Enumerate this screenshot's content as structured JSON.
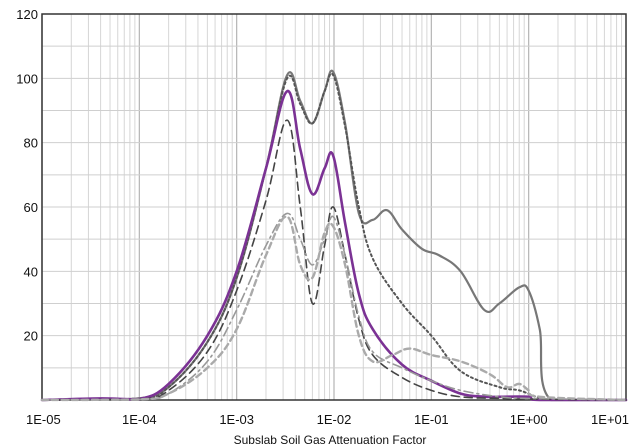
{
  "chart_data": {
    "type": "line",
    "title": "",
    "xlabel": "Subslab Soil Gas Attenuation Factor",
    "ylabel": "",
    "x_scale": "log",
    "xlim": [
      1e-05,
      10
    ],
    "ylim": [
      0,
      120
    ],
    "grid": true,
    "legend": "none",
    "x_ticks": [
      {
        "value": 1e-05,
        "label": "1E-05"
      },
      {
        "value": 0.0001,
        "label": "1E-04"
      },
      {
        "value": 0.001,
        "label": "1E-03"
      },
      {
        "value": 0.01,
        "label": "1E-02"
      },
      {
        "value": 0.1,
        "label": "1E-01"
      },
      {
        "value": 1,
        "label": "1E+00"
      },
      {
        "value": 10,
        "label": "1E+01"
      }
    ],
    "y_ticks": [
      {
        "value": 20,
        "label": "20"
      },
      {
        "value": 40,
        "label": "40"
      },
      {
        "value": 60,
        "label": "60"
      },
      {
        "value": 80,
        "label": "80"
      },
      {
        "value": 100,
        "label": "100"
      },
      {
        "value": 120,
        "label": "120"
      }
    ],
    "series": [
      {
        "color": "#777777",
        "style": "solid",
        "width": 2.2,
        "points": [
          [
            1e-05,
            0
          ],
          [
            3e-05,
            0.2
          ],
          [
            0.0001,
            0.5
          ],
          [
            0.0002,
            4
          ],
          [
            0.0005,
            18
          ],
          [
            0.001,
            38
          ],
          [
            0.002,
            72
          ],
          [
            0.0033,
            101
          ],
          [
            0.0045,
            93
          ],
          [
            0.006,
            86
          ],
          [
            0.008,
            96
          ],
          [
            0.0098,
            102
          ],
          [
            0.013,
            86
          ],
          [
            0.018,
            58
          ],
          [
            0.025,
            56
          ],
          [
            0.035,
            59
          ],
          [
            0.05,
            53
          ],
          [
            0.08,
            47
          ],
          [
            0.12,
            45
          ],
          [
            0.2,
            40
          ],
          [
            0.35,
            28
          ],
          [
            0.5,
            30
          ],
          [
            0.8,
            35
          ],
          [
            1.0,
            34
          ],
          [
            1.3,
            22
          ],
          [
            1.7,
            0
          ],
          [
            10,
            0
          ]
        ]
      },
      {
        "color": "#555555",
        "style": "dotted",
        "width": 2.0,
        "points": [
          [
            1e-05,
            0
          ],
          [
            0.0001,
            0.5
          ],
          [
            0.0002,
            4
          ],
          [
            0.0005,
            18
          ],
          [
            0.001,
            38
          ],
          [
            0.002,
            72
          ],
          [
            0.0033,
            100
          ],
          [
            0.0045,
            92
          ],
          [
            0.006,
            86
          ],
          [
            0.008,
            96
          ],
          [
            0.0098,
            101
          ],
          [
            0.013,
            85
          ],
          [
            0.018,
            60
          ],
          [
            0.025,
            44
          ],
          [
            0.05,
            30
          ],
          [
            0.1,
            20
          ],
          [
            0.2,
            9
          ],
          [
            0.5,
            4
          ],
          [
            0.8,
            3
          ],
          [
            1.2,
            1
          ],
          [
            1.7,
            0
          ],
          [
            10,
            0
          ]
        ]
      },
      {
        "color": "#7b3294",
        "style": "solid",
        "width": 2.6,
        "points": [
          [
            1e-05,
            0
          ],
          [
            4e-05,
            0.5
          ],
          [
            0.0001,
            0.3
          ],
          [
            0.0002,
            5
          ],
          [
            0.0005,
            20
          ],
          [
            0.001,
            40
          ],
          [
            0.002,
            72
          ],
          [
            0.0033,
            96
          ],
          [
            0.0045,
            78
          ],
          [
            0.006,
            64
          ],
          [
            0.008,
            72
          ],
          [
            0.0098,
            76
          ],
          [
            0.013,
            55
          ],
          [
            0.018,
            33
          ],
          [
            0.025,
            22
          ],
          [
            0.05,
            11
          ],
          [
            0.1,
            6
          ],
          [
            0.2,
            2
          ],
          [
            0.35,
            1
          ],
          [
            0.5,
            1
          ],
          [
            1.0,
            1
          ],
          [
            1.3,
            0
          ],
          [
            10,
            0
          ]
        ]
      },
      {
        "color": "#444444",
        "style": "dashed",
        "width": 1.6,
        "points": [
          [
            1e-05,
            0
          ],
          [
            0.0001,
            0.3
          ],
          [
            0.0002,
            3
          ],
          [
            0.0005,
            15
          ],
          [
            0.001,
            34
          ],
          [
            0.002,
            62
          ],
          [
            0.0033,
            87
          ],
          [
            0.0045,
            60
          ],
          [
            0.006,
            30
          ],
          [
            0.008,
            48
          ],
          [
            0.0098,
            60
          ],
          [
            0.013,
            45
          ],
          [
            0.018,
            25
          ],
          [
            0.025,
            14
          ],
          [
            0.05,
            7
          ],
          [
            0.1,
            3
          ],
          [
            0.2,
            1
          ],
          [
            0.5,
            0.5
          ],
          [
            1.0,
            0.3
          ],
          [
            10,
            0
          ]
        ]
      },
      {
        "color": "#999999",
        "style": "dashdot",
        "width": 1.6,
        "points": [
          [
            1e-05,
            0
          ],
          [
            0.0001,
            0.2
          ],
          [
            0.0002,
            2
          ],
          [
            0.0005,
            12
          ],
          [
            0.001,
            28
          ],
          [
            0.002,
            48
          ],
          [
            0.0033,
            58
          ],
          [
            0.0045,
            50
          ],
          [
            0.006,
            42
          ],
          [
            0.008,
            50
          ],
          [
            0.0098,
            57
          ],
          [
            0.013,
            45
          ],
          [
            0.018,
            26
          ],
          [
            0.025,
            15
          ],
          [
            0.05,
            10
          ],
          [
            0.1,
            6
          ],
          [
            0.2,
            3
          ],
          [
            0.5,
            1
          ],
          [
            1.0,
            0.5
          ],
          [
            10,
            0
          ]
        ]
      },
      {
        "color": "#aaaaaa",
        "style": "dashed-heavy",
        "width": 2.4,
        "points": [
          [
            1e-05,
            0
          ],
          [
            0.0001,
            0.2
          ],
          [
            0.0002,
            2
          ],
          [
            0.0005,
            10
          ],
          [
            0.001,
            22
          ],
          [
            0.002,
            45
          ],
          [
            0.0033,
            57
          ],
          [
            0.0045,
            42
          ],
          [
            0.006,
            38
          ],
          [
            0.008,
            52
          ],
          [
            0.0098,
            54
          ],
          [
            0.013,
            42
          ],
          [
            0.018,
            20
          ],
          [
            0.025,
            12
          ],
          [
            0.04,
            14
          ],
          [
            0.06,
            16
          ],
          [
            0.1,
            14
          ],
          [
            0.2,
            12
          ],
          [
            0.4,
            8
          ],
          [
            0.6,
            4
          ],
          [
            0.8,
            5
          ],
          [
            1.0,
            3
          ],
          [
            1.3,
            1
          ],
          [
            10,
            0
          ]
        ]
      }
    ]
  }
}
